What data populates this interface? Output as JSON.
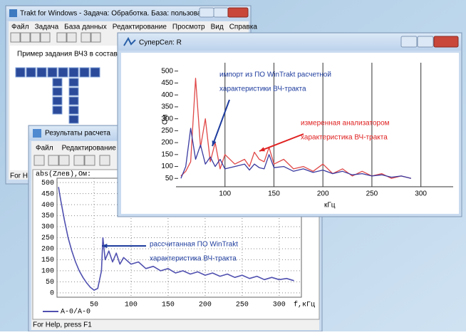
{
  "windows": {
    "trakt": {
      "title": "Trakt for Windows - Задача: Обработка. База: пользователь",
      "menu": [
        "Файл",
        "Задача",
        "База данных",
        "Редактирование",
        "Просмотр",
        "Вид",
        "Справка"
      ],
      "caption": "Пример задания ВЧЗ в составе тракта",
      "status": "For Help"
    },
    "results": {
      "title": "Результаты расчета",
      "menu": [
        "Файл",
        "Редактирование"
      ],
      "status": "For Help, press F1"
    },
    "supersel": {
      "title": "СуперСел: R"
    }
  },
  "chart_data": [
    {
      "type": "line",
      "x_label": "кГц",
      "y_label": "Ом",
      "xlim": [
        50,
        333
      ],
      "ylim": [
        15,
        535
      ],
      "xticks": [
        100,
        150,
        200,
        250,
        300
      ],
      "yticks": [
        50,
        100,
        150,
        200,
        250,
        300,
        350,
        400,
        450,
        500
      ],
      "grid": "x",
      "x": [
        55,
        60,
        65,
        70,
        75,
        80,
        85,
        90,
        95,
        100,
        110,
        120,
        125,
        130,
        135,
        140,
        145,
        150,
        160,
        170,
        180,
        190,
        200,
        210,
        220,
        230,
        240,
        250,
        260,
        270,
        280,
        290
      ],
      "series": [
        {
          "color": "#e04848",
          "values": [
            60,
            80,
            120,
            470,
            180,
            300,
            120,
            200,
            90,
            150,
            110,
            130,
            100,
            160,
            130,
            120,
            180,
            110,
            130,
            90,
            100,
            80,
            110,
            70,
            90,
            60,
            80,
            60,
            70,
            50,
            60,
            50
          ]
        },
        {
          "color": "#3a3aa0",
          "values": [
            50,
            100,
            260,
            130,
            190,
            110,
            140,
            100,
            130,
            90,
            100,
            110,
            85,
            110,
            95,
            90,
            150,
            95,
            100,
            80,
            90,
            75,
            85,
            70,
            80,
            65,
            70,
            60,
            65,
            55,
            60,
            50
          ]
        }
      ],
      "annotations": [
        {
          "text": [
            "импорт из ПО WinTrakt расчетной",
            "характеристики ВЧ-тракта"
          ],
          "color": "#1f3d9e"
        },
        {
          "text": [
            "измеренная анализатором",
            "характеристика ВЧ-тракта"
          ],
          "color": "#e02020"
        }
      ]
    },
    {
      "type": "line",
      "x_label": "f,кГц",
      "y_label": "abs(Zлев),Ом:",
      "xlim": [
        0,
        330
      ],
      "ylim": [
        -20,
        520
      ],
      "xticks": [
        50,
        100,
        150,
        200,
        250,
        300
      ],
      "yticks": [
        0,
        50,
        100,
        150,
        200,
        250,
        300,
        350,
        400,
        450,
        500
      ],
      "grid": "both",
      "x": [
        2,
        5,
        10,
        15,
        20,
        25,
        30,
        35,
        40,
        45,
        50,
        55,
        60,
        62,
        65,
        70,
        75,
        80,
        85,
        90,
        100,
        110,
        120,
        130,
        140,
        150,
        160,
        170,
        180,
        190,
        200,
        210,
        220,
        230,
        240,
        250,
        260,
        270,
        280,
        290,
        300,
        310,
        320
      ],
      "series": [
        {
          "name": "A-0/A-0",
          "color": "#5050b0",
          "values": [
            480,
            420,
            330,
            250,
            190,
            140,
            100,
            70,
            45,
            25,
            12,
            20,
            100,
            250,
            150,
            190,
            140,
            180,
            130,
            160,
            130,
            140,
            110,
            120,
            100,
            110,
            90,
            100,
            85,
            95,
            80,
            90,
            75,
            85,
            70,
            80,
            65,
            75,
            60,
            70,
            60,
            65,
            55
          ]
        }
      ],
      "annotations": [
        {
          "text": [
            "рассчитанная ПО WinTrakt",
            "характеристика ВЧ-тракта"
          ],
          "color": "#1f3d9e"
        }
      ]
    }
  ]
}
